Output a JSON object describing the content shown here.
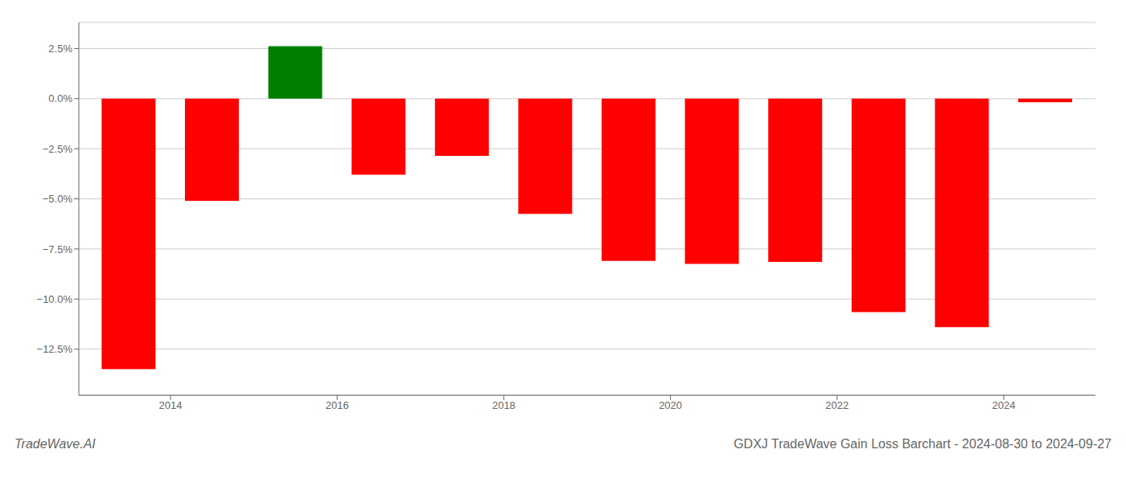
{
  "chart_data": {
    "type": "bar",
    "title": "GDXJ TradeWave Gain Loss Barchart - 2024-08-30 to 2024-09-27",
    "annotations": [
      "TradeWave.AI"
    ],
    "x": [
      2013,
      2014,
      2015,
      2016,
      2017,
      2018,
      2019,
      2020,
      2021,
      2022,
      2023,
      2024
    ],
    "values": [
      -13.5,
      -5.1,
      2.62,
      -3.8,
      -2.85,
      -5.75,
      -8.1,
      -8.25,
      -8.15,
      -10.65,
      -11.4,
      -0.18
    ],
    "colors": [
      "#ff0000",
      "#ff0000",
      "#008000",
      "#ff0000",
      "#ff0000",
      "#ff0000",
      "#ff0000",
      "#ff0000",
      "#ff0000",
      "#ff0000",
      "#ff0000",
      "#ff0000"
    ],
    "xlim": [
      2012.4,
      2024.6
    ],
    "xticks": [
      {
        "value": 2013.5,
        "label": "2014"
      },
      {
        "value": 2015.5,
        "label": "2016"
      },
      {
        "value": 2017.5,
        "label": "2018"
      },
      {
        "value": 2019.5,
        "label": "2020"
      },
      {
        "value": 2021.5,
        "label": "2022"
      },
      {
        "value": 2023.5,
        "label": "2024"
      }
    ],
    "ylim": [
      -14.8,
      3.8
    ],
    "yticks": [
      {
        "value": 2.5,
        "label": "2.5%"
      },
      {
        "value": 0.0,
        "label": "0.0%"
      },
      {
        "value": -2.5,
        "label": "−2.5%"
      },
      {
        "value": -5.0,
        "label": "−5.0%"
      },
      {
        "value": -7.5,
        "label": "−7.5%"
      },
      {
        "value": -10.0,
        "label": "−10.0%"
      },
      {
        "value": -12.5,
        "label": "−12.5%"
      }
    ],
    "grid": true
  }
}
